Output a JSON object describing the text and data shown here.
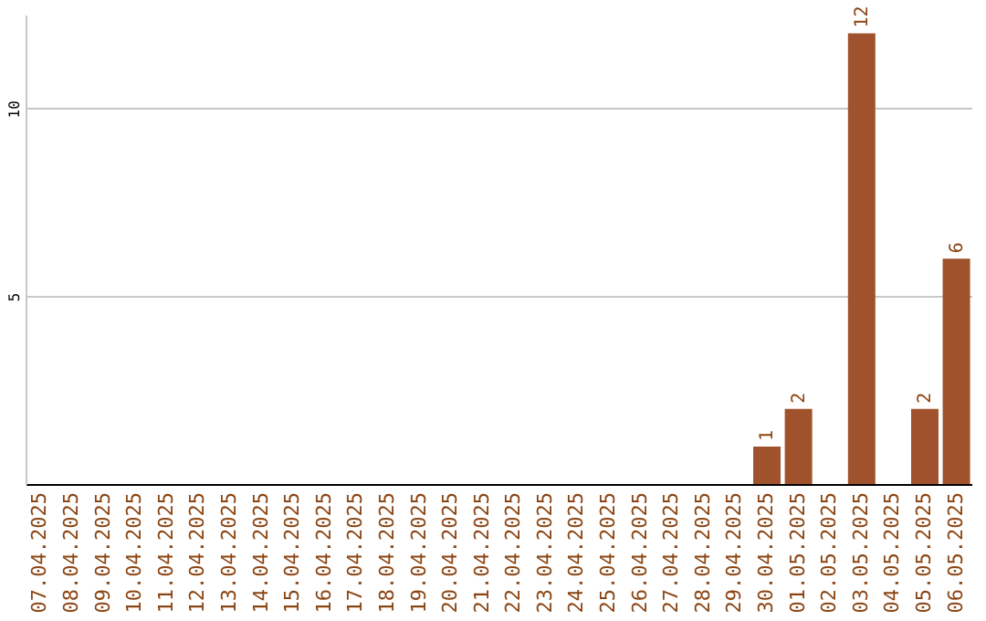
{
  "chart_data": {
    "type": "bar",
    "categories": [
      "07.04.2025",
      "08.04.2025",
      "09.04.2025",
      "10.04.2025",
      "11.04.2025",
      "12.04.2025",
      "13.04.2025",
      "14.04.2025",
      "15.04.2025",
      "16.04.2025",
      "17.04.2025",
      "18.04.2025",
      "19.04.2025",
      "20.04.2025",
      "21.04.2025",
      "22.04.2025",
      "23.04.2025",
      "24.04.2025",
      "25.04.2025",
      "26.04.2025",
      "27.04.2025",
      "28.04.2025",
      "29.04.2025",
      "30.04.2025",
      "01.05.2025",
      "02.05.2025",
      "03.05.2025",
      "04.05.2025",
      "05.05.2025",
      "06.05.2025"
    ],
    "values": [
      0,
      0,
      0,
      0,
      0,
      0,
      0,
      0,
      0,
      0,
      0,
      0,
      0,
      0,
      0,
      0,
      0,
      0,
      0,
      0,
      0,
      0,
      0,
      1,
      2,
      0,
      12,
      0,
      2,
      6
    ],
    "value_labels": [
      null,
      null,
      null,
      null,
      null,
      null,
      null,
      null,
      null,
      null,
      null,
      null,
      null,
      null,
      null,
      null,
      null,
      null,
      null,
      null,
      null,
      null,
      null,
      "1",
      "2",
      null,
      "12",
      null,
      "2",
      "6"
    ],
    "color": "#a0522d",
    "ylim": [
      0,
      12.5
    ],
    "yticks": [
      5,
      10
    ],
    "grid": "y"
  }
}
